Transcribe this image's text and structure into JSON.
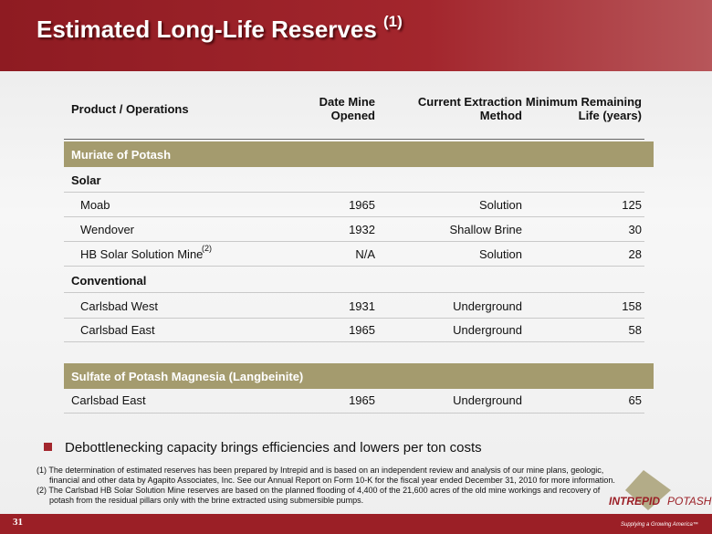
{
  "header": {
    "title": "Estimated Long-Life Reserves",
    "title_note": "(1)"
  },
  "table": {
    "columns": [
      "Product / Operations",
      "Date Mine Opened",
      "Current Extraction Method",
      "Minimum Remaining Life (years)"
    ],
    "sections": [
      {
        "title": "Muriate of Potash",
        "groups": [
          {
            "title": "Solar",
            "note": "(2)",
            "rows": [
              [
                "Moab",
                "1965",
                "Solution",
                "125"
              ],
              [
                "Wendover",
                "1932",
                "Shallow Brine",
                "30"
              ],
              [
                "HB Solar Solution Mine",
                "N/A",
                "Solution",
                "28"
              ]
            ]
          },
          {
            "title": "Conventional",
            "rows": [
              [
                "Carlsbad West",
                "1931",
                "Underground",
                "158"
              ],
              [
                "Carlsbad East",
                "1965",
                "Underground",
                "58"
              ]
            ]
          }
        ]
      },
      {
        "title": "Sulfate of Potash Magnesia (Langbeinite)",
        "rows": [
          [
            "Carlsbad East",
            "1965",
            "Underground",
            "65"
          ]
        ]
      }
    ]
  },
  "bullet": "Debottlenecking capacity brings efficiencies and lowers per ton costs",
  "footnotes": [
    "(1) The determination of estimated reserves has been prepared by Intrepid and is based on an independent review and analysis of our mine plans, geologic, financial and other data by Agapito Associates, Inc.  See our Annual Report on Form 10-K for the fiscal year ended December 31, 2010 for more information.",
    "(2) The Carlsbad HB Solar Solution Mine reserves are based on the planned flooding of 4,400 of the 21,600 acres of the old mine workings and recovery of potash from the residual pillars only with the brine extracted using submersible pumps."
  ],
  "page_number": "31",
  "logo": {
    "name": "INTREPID",
    "name2": "POTASH",
    "tagline": "Supplying a Growing America™"
  }
}
